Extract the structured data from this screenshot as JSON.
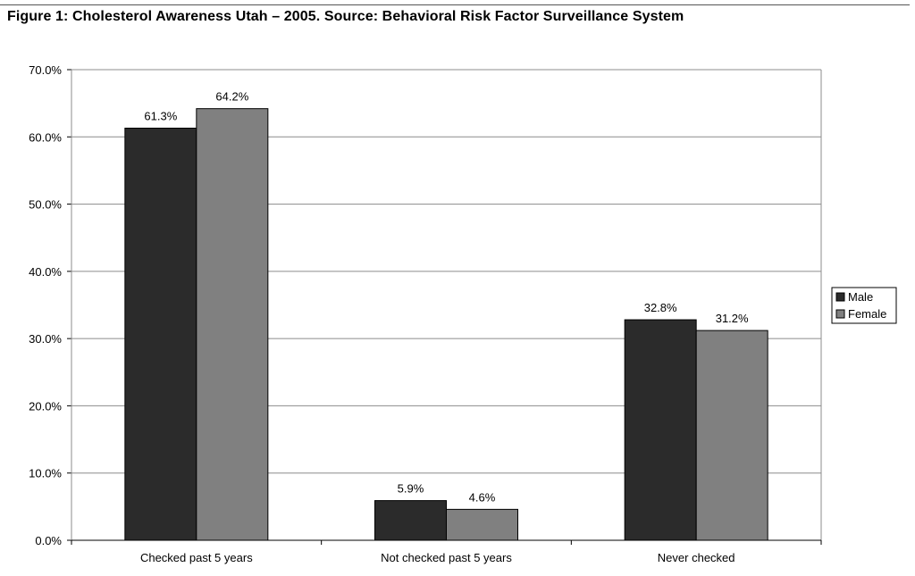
{
  "figure_title": "Figure 1:  Cholesterol Awareness Utah – 2005.  Source: Behavioral Risk Factor Surveillance System",
  "chart_data": {
    "type": "bar",
    "title": "Figure 1:  Cholesterol Awareness Utah – 2005.  Source: Behavioral Risk Factor Surveillance System",
    "categories": [
      "Checked past 5 years",
      "Not checked past 5 years",
      "Never checked"
    ],
    "series": [
      {
        "name": "Male",
        "values": [
          61.3,
          5.9,
          32.8
        ],
        "color": "#2b2b2b"
      },
      {
        "name": "Female",
        "values": [
          64.2,
          4.6,
          31.2
        ],
        "color": "#808080"
      }
    ],
    "data_labels": [
      [
        "61.3%",
        "5.9%",
        "32.8%"
      ],
      [
        "64.2%",
        "4.6%",
        "31.2%"
      ]
    ],
    "y_ticks": [
      0,
      10,
      20,
      30,
      40,
      50,
      60,
      70
    ],
    "y_tick_labels": [
      "0.0%",
      "10.0%",
      "20.0%",
      "30.0%",
      "40.0%",
      "50.0%",
      "60.0%",
      "70.0%"
    ],
    "ylim": [
      0,
      70
    ],
    "xlabel": "",
    "ylabel": "",
    "grid": true,
    "legend_position": "right"
  }
}
